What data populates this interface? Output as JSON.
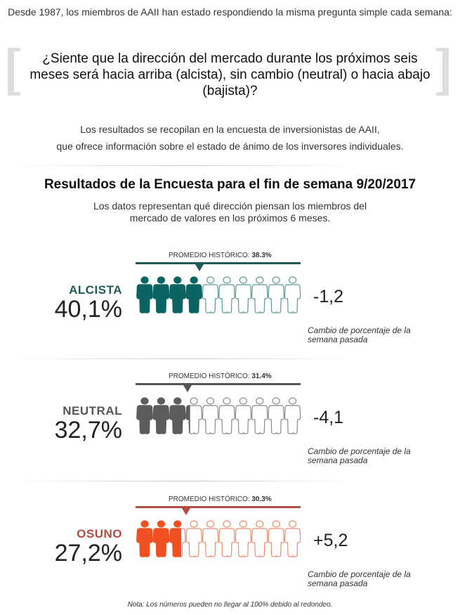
{
  "intro": {
    "text": "Desde 1987, los miembros de AAII han estado respondiendo la misma pregunta simple cada semana:",
    "question": "¿Siente que la dirección del mercado durante los próximos seis meses será hacia arriba (alcista), sin cambio (neutral) o hacia abajo (bajista)?",
    "results_info_line1": "Los resultados se recopilan en la encuesta de inversionistas de AAII,",
    "results_info_line2": "que ofrece información sobre el estado de ánimo de los inversores individuales."
  },
  "chart_data": {
    "type": "bar",
    "title": "Resultados de la Encuesta para el fin de semana 9/20/2017",
    "subtitle_line1": "Los datos representan qué dirección piensan los miembros del",
    "subtitle_line2": "mercado de valores en los próximos 6 meses.",
    "categories": [
      "ALCISTA",
      "NEUTRAL",
      "OSUNO"
    ],
    "unit": "%",
    "ylim": [
      0,
      100
    ],
    "icons_total": 10,
    "avg_prefix": "PROMEDIO HISTÓRICO: ",
    "change_note": "Cambio de porcentaje de la semana pasada",
    "series": [
      {
        "name": "ALCISTA",
        "value": 40.1,
        "value_label": "40,1%",
        "historical_avg": 38.3,
        "historical_avg_label": "38.3%",
        "change": -1.2,
        "change_label": "-1,2",
        "color": "#0b6461",
        "outline": "#5e9896",
        "line_color": "#225855"
      },
      {
        "name": "NEUTRAL",
        "value": 32.7,
        "value_label": "32,7%",
        "historical_avg": 31.4,
        "historical_avg_label": "31.4%",
        "change": -4.1,
        "change_label": "-4,1",
        "color": "#5c5c5c",
        "outline": "#8a8a8a",
        "line_color": "#555555"
      },
      {
        "name": "OSUNO",
        "value": 27.2,
        "value_label": "27,2%",
        "historical_avg": 30.3,
        "historical_avg_label": "30.3%",
        "change": 5.2,
        "change_label": "+5,2",
        "color": "#f05022",
        "outline": "#f08a6c",
        "line_color": "#b24e3f"
      }
    ]
  },
  "colors": {
    "label_alcista": "#1f5c58",
    "label_neutral": "#555555",
    "label_osuno": "#b24e3f"
  },
  "footnote": "Nota: Los números pueden no llegar al 100% debido al redondeo."
}
